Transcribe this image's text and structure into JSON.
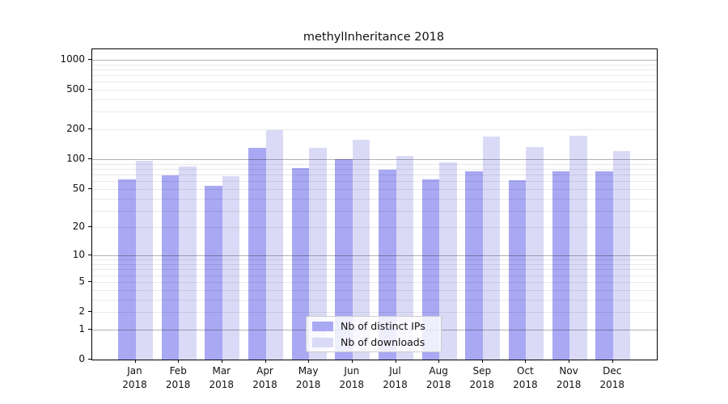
{
  "title": "methylInheritance 2018",
  "colors": {
    "ips_bar": "#a8a8f3",
    "downloads_bar": "#dadaf7",
    "grid_major": "rgba(0,0,0,0.30)",
    "grid_minor": "rgba(0,0,0,0.085)",
    "axis": "#000000",
    "legend_border": "#cccccc"
  },
  "chart_data": {
    "type": "bar",
    "title": "methylInheritance 2018",
    "scale": "log10(value+1)",
    "grid": "on",
    "legend_position": "bottom-center-inside",
    "year": "2018",
    "categories": [
      "Jan",
      "Feb",
      "Mar",
      "Apr",
      "May",
      "Jun",
      "Jul",
      "Aug",
      "Sep",
      "Oct",
      "Nov",
      "Dec"
    ],
    "series": [
      {
        "name": "Nb of distinct IPs",
        "color": "#a8a8f3",
        "values": [
          63,
          69,
          54,
          130,
          82,
          100,
          78,
          62,
          76,
          61,
          76,
          76
        ]
      },
      {
        "name": "Nb of downloads",
        "color": "#dadaf7",
        "values": [
          96,
          85,
          67,
          195,
          130,
          158,
          108,
          93,
          170,
          133,
          174,
          121
        ]
      }
    ],
    "yticks": [
      0,
      1,
      2,
      5,
      10,
      20,
      50,
      100,
      200,
      500,
      1000
    ],
    "ylim": [
      0,
      1000
    ],
    "xlabel": "",
    "ylabel": ""
  }
}
